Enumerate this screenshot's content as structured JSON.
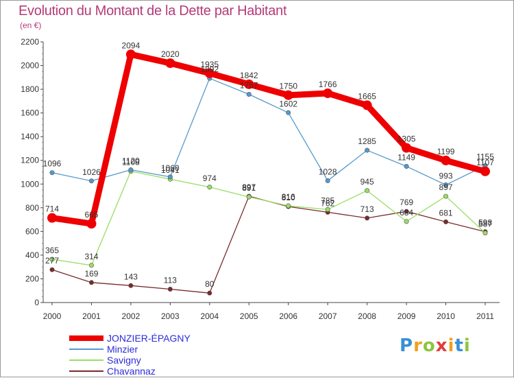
{
  "title": "Evolution du Montant de la Dette par Habitant",
  "subtitle": "(en €)",
  "logo": "Proxiti",
  "colors": {
    "title": "#b43a78",
    "axis": "#444444",
    "grid": "#d8d8d8",
    "legend_text": "#2b2bd8"
  },
  "chart_data": {
    "type": "line",
    "title": "Evolution du Montant de la Dette par Habitant",
    "subtitle": "(en €)",
    "x": [
      "2000",
      "2001",
      "2002",
      "2003",
      "2004",
      "2005",
      "2006",
      "2007",
      "2008",
      "2009",
      "2010",
      "2011"
    ],
    "ylim": [
      0,
      2200
    ],
    "yticks": [
      0,
      200,
      400,
      600,
      800,
      1000,
      1200,
      1400,
      1600,
      1800,
      2000,
      2200
    ],
    "grid": false,
    "legend": "bottom-left",
    "series": [
      {
        "name": "JONZIER-ÉPAGNY",
        "color": "#ee0000",
        "values": [
          714,
          665,
          2094,
          2020,
          1935,
          1842,
          1750,
          1766,
          1665,
          1305,
          1199,
          1107
        ],
        "labels": [
          "714",
          "665",
          "2094",
          "2020",
          "1935",
          "1842",
          "1750",
          "1766",
          "1665",
          "1305",
          "1199",
          "1107"
        ]
      },
      {
        "name": "Minzier",
        "color": "#5599cc",
        "values": [
          1096,
          1026,
          1120,
          1060,
          1892,
          1757,
          1602,
          1028,
          1285,
          1149,
          993,
          1155
        ],
        "labels": [
          "1096",
          "1026",
          "1120",
          "1060",
          "1892",
          "1757",
          "1602",
          "1028",
          "1285",
          "1149",
          "993",
          "1155"
        ]
      },
      {
        "name": "Savigny",
        "color": "#99dd66",
        "values": [
          365,
          314,
          1108,
          1041,
          974,
          891,
          816,
          785,
          945,
          684,
          897,
          587
        ],
        "labels": [
          "365",
          "314",
          "1108",
          "1041",
          "974",
          "891",
          "816",
          "785",
          "945",
          "684",
          "897",
          "587"
        ]
      },
      {
        "name": "Chavannaz",
        "color": "#7a2a2a",
        "values": [
          277,
          169,
          143,
          113,
          80,
          897,
          810,
          762,
          713,
          769,
          681,
          598
        ],
        "labels": [
          "277",
          "169",
          "143",
          "113",
          "80",
          "897",
          "810",
          "762",
          "713",
          "769",
          "681",
          "598"
        ]
      }
    ]
  }
}
